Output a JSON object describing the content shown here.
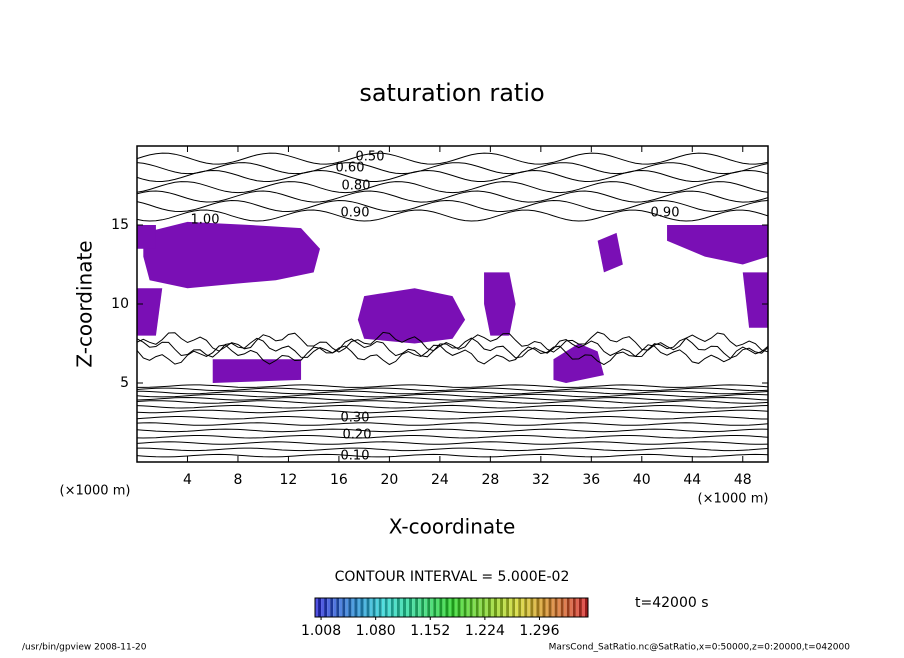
{
  "chart_data": {
    "type": "contour",
    "title": "saturation ratio",
    "x_label": "X-coordinate",
    "y_label": "Z-coordinate",
    "x_unit": "(×1000 m)",
    "y_unit": "(×1000 m)",
    "xlim": [
      0,
      50
    ],
    "ylim": [
      0,
      20
    ],
    "xticks": [
      4,
      8,
      12,
      16,
      20,
      24,
      28,
      32,
      36,
      40,
      44,
      48
    ],
    "yticks": [
      5,
      10,
      15
    ],
    "shade_color": "#7a0fb5",
    "contour_labels": [
      {
        "value": 0.5,
        "label": "0.50"
      },
      {
        "value": 0.6,
        "label": "0.60"
      },
      {
        "value": 0.8,
        "label": "0.80"
      },
      {
        "value": 0.9,
        "label": "0.90"
      },
      {
        "value": 1.0,
        "label": "1.00"
      },
      {
        "value": 0.9,
        "label": "0.90"
      },
      {
        "value": 0.3,
        "label": "0.30"
      },
      {
        "value": 0.2,
        "label": "0.20"
      },
      {
        "value": 0.1,
        "label": "0.10"
      }
    ],
    "contour_interval": "CONTOUR INTERVAL = 5.000E-02",
    "colorbar_lim": [
      1.0,
      1.36
    ],
    "colorbar_ticks": [
      1.008,
      {
        "value": 1.08,
        "label": "1.080"
      },
      1.152,
      1.224,
      1.296
    ],
    "time_label": "t=42000 s",
    "footer_left": "/usr/bin/gpview  2008-11-20",
    "footer_right": "MarsCond_SatRatio.nc@SatRatio,x=0:50000,z=0:20000,t=042000"
  }
}
